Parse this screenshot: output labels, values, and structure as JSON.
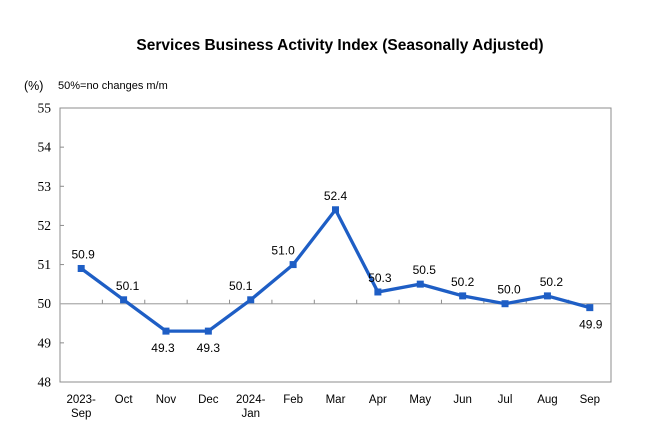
{
  "chart_data": {
    "type": "line",
    "title": "Services Business Activity Index (Seasonally Adjusted)",
    "unit_label": "(%)",
    "note": "50%=no changes m/m",
    "categories": [
      "2023-\nSep",
      "Oct",
      "Nov",
      "Dec",
      "2024-\nJan",
      "Feb",
      "Mar",
      "Apr",
      "May",
      "Jun",
      "Jul",
      "Aug",
      "Sep"
    ],
    "values": [
      50.9,
      50.1,
      49.3,
      49.3,
      50.1,
      51.0,
      52.4,
      50.3,
      50.5,
      50.2,
      50.0,
      50.2,
      49.9
    ],
    "data_labels": [
      "50.9",
      "50.1",
      "49.3",
      "49.3",
      "50.1",
      "51.0",
      "52.4",
      "50.3",
      "50.5",
      "50.2",
      "50.0",
      "50.2",
      "49.9"
    ],
    "label_positions": [
      "above",
      "above",
      "below",
      "below",
      "above",
      "above",
      "above",
      "above",
      "above",
      "above",
      "above",
      "above",
      "below"
    ],
    "label_dx": [
      2,
      4,
      -3,
      0,
      -10,
      -10,
      0,
      2,
      4,
      0,
      4,
      4,
      1
    ],
    "xlabel": "",
    "ylabel": "",
    "ylim": [
      48,
      55
    ],
    "ytick_step": 1,
    "yticks": [
      "48",
      "49",
      "50",
      "51",
      "52",
      "53",
      "54",
      "55"
    ],
    "reference_line": 50,
    "grid": "off",
    "legend": "none",
    "colors": {
      "line": "#1E5EC5",
      "marker": "#1E5EC5",
      "frame": "#8C8C8C",
      "reference": "#ABABAB",
      "tick": "#8C8C8C",
      "text": "#000000"
    }
  }
}
